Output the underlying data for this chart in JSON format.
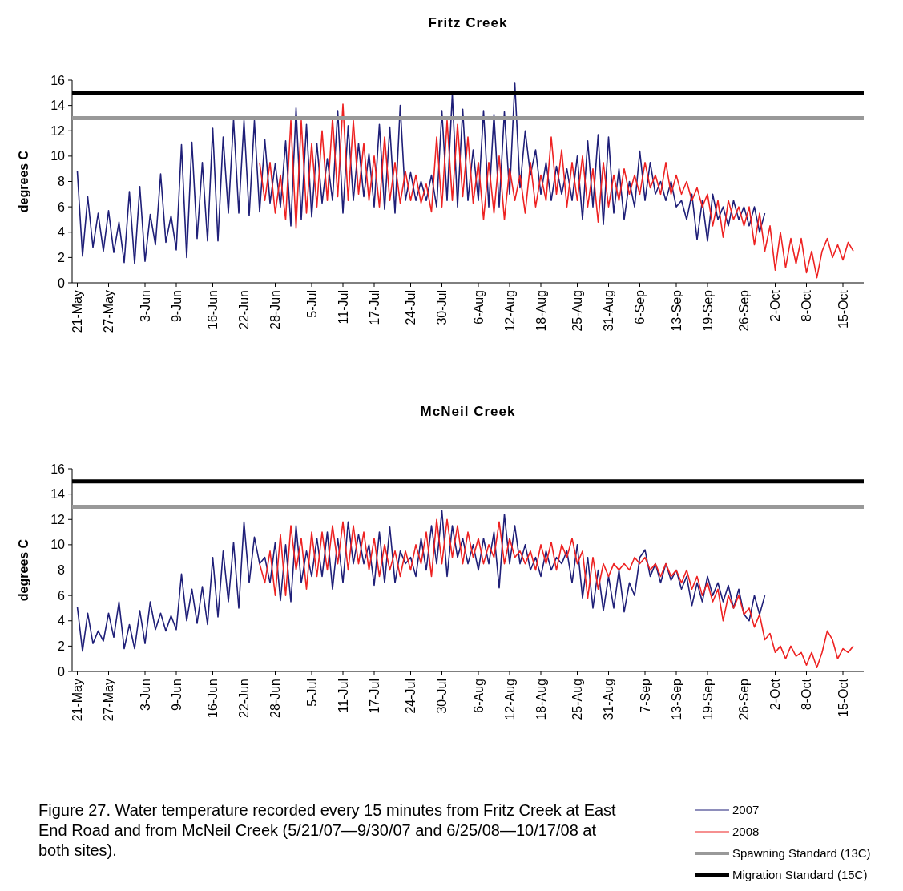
{
  "chart_data": [
    {
      "type": "line",
      "title": "Fritz Creek",
      "ylabel": "degrees C",
      "x": [
        "--05-21",
        "--05-22",
        "--05-23",
        "--05-24",
        "--05-25",
        "--05-26",
        "--05-27",
        "--05-28",
        "--05-29",
        "--05-30",
        "--05-31",
        "--06-01",
        "--06-02",
        "--06-03",
        "--06-04",
        "--06-05",
        "--06-06",
        "--06-07",
        "--06-08",
        "--06-09",
        "--06-10",
        "--06-11",
        "--06-12",
        "--06-13",
        "--06-14",
        "--06-15",
        "--06-16",
        "--06-17",
        "--06-18",
        "--06-19",
        "--06-20",
        "--06-21",
        "--06-22",
        "--06-23",
        "--06-24",
        "--06-25",
        "--06-26",
        "--06-27",
        "--06-28",
        "--06-29",
        "--06-30",
        "--07-01",
        "--07-02",
        "--07-03",
        "--07-04",
        "--07-05",
        "--07-06",
        "--07-07",
        "--07-08",
        "--07-09",
        "--07-10",
        "--07-11",
        "--07-12",
        "--07-13",
        "--07-14",
        "--07-15",
        "--07-16",
        "--07-17",
        "--07-18",
        "--07-19",
        "--07-20",
        "--07-21",
        "--07-22",
        "--07-23",
        "--07-24",
        "--07-25",
        "--07-26",
        "--07-27",
        "--07-28",
        "--07-29",
        "--07-30",
        "--07-31",
        "--08-01",
        "--08-02",
        "--08-03",
        "--08-04",
        "--08-05",
        "--08-06",
        "--08-07",
        "--08-08",
        "--08-09",
        "--08-10",
        "--08-11",
        "--08-12",
        "--08-13",
        "--08-14",
        "--08-15",
        "--08-16",
        "--08-17",
        "--08-18",
        "--08-19",
        "--08-20",
        "--08-21",
        "--08-22",
        "--08-23",
        "--08-24",
        "--08-25",
        "--08-26",
        "--08-27",
        "--08-28",
        "--08-29",
        "--08-30",
        "--08-31",
        "--09-01",
        "--09-02",
        "--09-03",
        "--09-04",
        "--09-05",
        "--09-06",
        "--09-07",
        "--09-08",
        "--09-09",
        "--09-10",
        "--09-11",
        "--09-12",
        "--09-13",
        "--09-14",
        "--09-15",
        "--09-16",
        "--09-17",
        "--09-18",
        "--09-19",
        "--09-20",
        "--09-21",
        "--09-22",
        "--09-23",
        "--09-24",
        "--09-25",
        "--09-26",
        "--09-27",
        "--09-28",
        "--09-29",
        "--09-30",
        "--10-01",
        "--10-02",
        "--10-03",
        "--10-04",
        "--10-05",
        "--10-06",
        "--10-07",
        "--10-08",
        "--10-09",
        "--10-10",
        "--10-11",
        "--10-12",
        "--10-13",
        "--10-14",
        "--10-15",
        "--10-16",
        "--10-17"
      ],
      "xlim": [
        "--05-20",
        "--10-19"
      ],
      "xticks": [
        {
          "value": "--05-21",
          "label": "21-May"
        },
        {
          "value": "--05-27",
          "label": "27-May"
        },
        {
          "value": "--06-03",
          "label": "3-Jun"
        },
        {
          "value": "--06-09",
          "label": "9-Jun"
        },
        {
          "value": "--06-16",
          "label": "16-Jun"
        },
        {
          "value": "--06-22",
          "label": "22-Jun"
        },
        {
          "value": "--06-28",
          "label": "28-Jun"
        },
        {
          "value": "--07-05",
          "label": "5-Jul"
        },
        {
          "value": "--07-11",
          "label": "11-Jul"
        },
        {
          "value": "--07-17",
          "label": "17-Jul"
        },
        {
          "value": "--07-24",
          "label": "24-Jul"
        },
        {
          "value": "--07-30",
          "label": "30-Jul"
        },
        {
          "value": "--08-06",
          "label": "6-Aug"
        },
        {
          "value": "--08-12",
          "label": "12-Aug"
        },
        {
          "value": "--08-18",
          "label": "18-Aug"
        },
        {
          "value": "--08-25",
          "label": "25-Aug"
        },
        {
          "value": "--08-31",
          "label": "31-Aug"
        },
        {
          "value": "--09-06",
          "label": "6-Sep"
        },
        {
          "value": "--09-13",
          "label": "13-Sep"
        },
        {
          "value": "--09-19",
          "label": "19-Sep"
        },
        {
          "value": "--09-26",
          "label": "26-Sep"
        },
        {
          "value": "--10-02",
          "label": "2-Oct"
        },
        {
          "value": "--10-08",
          "label": "8-Oct"
        },
        {
          "value": "--10-15",
          "label": "15-Oct"
        }
      ],
      "ylim": [
        0,
        16
      ],
      "yticks": [
        0,
        2,
        4,
        6,
        8,
        10,
        12,
        14,
        16
      ],
      "series": [
        {
          "color": "#1f1f78",
          "values": [
            8.8,
            2.1,
            6.8,
            2.8,
            5.5,
            2.5,
            5.7,
            2.4,
            4.8,
            1.6,
            7.2,
            1.5,
            7.6,
            1.7,
            5.4,
            3.0,
            8.6,
            3.2,
            5.3,
            2.6,
            10.9,
            2.0,
            11.1,
            3.5,
            9.5,
            3.3,
            12.2,
            3.3,
            11.5,
            5.5,
            12.9,
            5.5,
            12.8,
            5.3,
            12.8,
            5.6,
            11.3,
            6.3,
            9.4,
            6.0,
            11.2,
            4.5,
            13.8,
            5.0,
            12.5,
            5.2,
            11.0,
            6.3,
            9.8,
            6.5,
            13.6,
            5.5,
            12.4,
            6.5,
            11.0,
            6.8,
            10.2,
            6.0,
            12.5,
            5.8,
            12.3,
            5.5,
            14.0,
            6.5,
            8.7,
            6.5,
            8.0,
            6.5,
            8.5,
            6.0,
            13.6,
            6.5,
            14.9,
            6.0,
            13.7,
            6.5,
            10.5,
            6.5,
            13.6,
            6.0,
            13.3,
            6.0,
            13.5,
            7.0,
            15.8,
            7.5,
            12.0,
            8.5,
            10.5,
            7.0,
            9.5,
            6.5,
            9.2,
            7.0,
            9.0,
            6.5,
            10.0,
            5.0,
            11.2,
            6.0,
            11.7,
            4.6,
            11.5,
            5.5,
            9.0,
            5.0,
            8.0,
            6.0,
            10.4,
            6.5,
            9.5,
            7.0,
            8.0,
            6.5,
            8.0,
            6.0,
            6.5,
            5.0,
            7.0,
            3.4,
            6.5,
            3.3,
            7.0,
            5.0,
            6.0,
            4.5,
            6.5,
            5.0,
            6.0,
            4.5,
            6.0,
            4.0,
            5.5,
            null,
            null,
            null,
            null,
            null,
            null,
            null,
            null,
            null,
            null,
            null,
            null,
            null,
            null,
            null,
            null,
            null
          ]
        },
        {
          "color": "#ee2222",
          "values": [
            null,
            null,
            null,
            null,
            null,
            null,
            null,
            null,
            null,
            null,
            null,
            null,
            null,
            null,
            null,
            null,
            null,
            null,
            null,
            null,
            null,
            null,
            null,
            null,
            null,
            null,
            null,
            null,
            null,
            null,
            null,
            null,
            null,
            null,
            null,
            9.5,
            6.5,
            9.5,
            5.5,
            8.5,
            5.0,
            12.8,
            4.3,
            12.8,
            5.5,
            11.0,
            6.0,
            12.0,
            6.5,
            13.0,
            6.8,
            14.1,
            6.5,
            12.8,
            7.0,
            11.0,
            6.5,
            10.0,
            6.0,
            11.5,
            6.5,
            9.5,
            6.3,
            8.8,
            6.5,
            8.5,
            6.3,
            7.8,
            5.6,
            11.5,
            6.0,
            12.8,
            6.5,
            12.5,
            6.8,
            11.5,
            6.3,
            9.5,
            5.0,
            9.5,
            5.5,
            10.0,
            5.0,
            9.0,
            6.5,
            8.5,
            5.5,
            9.5,
            6.0,
            8.5,
            6.5,
            11.5,
            7.0,
            10.5,
            6.0,
            9.5,
            6.5,
            10.0,
            6.0,
            9.0,
            4.8,
            9.5,
            6.0,
            8.5,
            6.5,
            9.0,
            7.0,
            8.5,
            7.0,
            9.5,
            7.5,
            8.5,
            7.0,
            9.5,
            7.0,
            8.5,
            7.0,
            8.0,
            6.5,
            7.5,
            6.0,
            7.0,
            4.5,
            6.5,
            3.6,
            6.5,
            5.0,
            6.0,
            4.5,
            6.0,
            3.0,
            5.5,
            2.5,
            4.5,
            1.0,
            4.0,
            1.2,
            3.5,
            1.5,
            3.5,
            0.8,
            2.5,
            0.4,
            2.5,
            3.5,
            2.0,
            3.0,
            1.8,
            3.2,
            2.5
          ]
        }
      ],
      "ref_lines": [
        {
          "axis": "y",
          "value": 13,
          "color": "#999999"
        },
        {
          "axis": "y",
          "value": 15,
          "color": "#000000"
        }
      ]
    },
    {
      "type": "line",
      "title": "McNeil Creek",
      "ylabel": "degrees C",
      "x": [
        "--05-21",
        "--05-22",
        "--05-23",
        "--05-24",
        "--05-25",
        "--05-26",
        "--05-27",
        "--05-28",
        "--05-29",
        "--05-30",
        "--05-31",
        "--06-01",
        "--06-02",
        "--06-03",
        "--06-04",
        "--06-05",
        "--06-06",
        "--06-07",
        "--06-08",
        "--06-09",
        "--06-10",
        "--06-11",
        "--06-12",
        "--06-13",
        "--06-14",
        "--06-15",
        "--06-16",
        "--06-17",
        "--06-18",
        "--06-19",
        "--06-20",
        "--06-21",
        "--06-22",
        "--06-23",
        "--06-24",
        "--06-25",
        "--06-26",
        "--06-27",
        "--06-28",
        "--06-29",
        "--06-30",
        "--07-01",
        "--07-02",
        "--07-03",
        "--07-04",
        "--07-05",
        "--07-06",
        "--07-07",
        "--07-08",
        "--07-09",
        "--07-10",
        "--07-11",
        "--07-12",
        "--07-13",
        "--07-14",
        "--07-15",
        "--07-16",
        "--07-17",
        "--07-18",
        "--07-19",
        "--07-20",
        "--07-21",
        "--07-22",
        "--07-23",
        "--07-24",
        "--07-25",
        "--07-26",
        "--07-27",
        "--07-28",
        "--07-29",
        "--07-30",
        "--07-31",
        "--08-01",
        "--08-02",
        "--08-03",
        "--08-04",
        "--08-05",
        "--08-06",
        "--08-07",
        "--08-08",
        "--08-09",
        "--08-10",
        "--08-11",
        "--08-12",
        "--08-13",
        "--08-14",
        "--08-15",
        "--08-16",
        "--08-17",
        "--08-18",
        "--08-19",
        "--08-20",
        "--08-21",
        "--08-22",
        "--08-23",
        "--08-24",
        "--08-25",
        "--08-26",
        "--08-27",
        "--08-28",
        "--08-29",
        "--08-30",
        "--08-31",
        "--09-01",
        "--09-02",
        "--09-03",
        "--09-04",
        "--09-05",
        "--09-06",
        "--09-07",
        "--09-08",
        "--09-09",
        "--09-10",
        "--09-11",
        "--09-12",
        "--09-13",
        "--09-14",
        "--09-15",
        "--09-16",
        "--09-17",
        "--09-18",
        "--09-19",
        "--09-20",
        "--09-21",
        "--09-22",
        "--09-23",
        "--09-24",
        "--09-25",
        "--09-26",
        "--09-27",
        "--09-28",
        "--09-29",
        "--09-30",
        "--10-01",
        "--10-02",
        "--10-03",
        "--10-04",
        "--10-05",
        "--10-06",
        "--10-07",
        "--10-08",
        "--10-09",
        "--10-10",
        "--10-11",
        "--10-12",
        "--10-13",
        "--10-14",
        "--10-15",
        "--10-16",
        "--10-17"
      ],
      "xlim": [
        "--05-20",
        "--10-19"
      ],
      "xticks": [
        {
          "value": "--05-21",
          "label": "21-May"
        },
        {
          "value": "--05-27",
          "label": "27-May"
        },
        {
          "value": "--06-03",
          "label": "3-Jun"
        },
        {
          "value": "--06-09",
          "label": "9-Jun"
        },
        {
          "value": "--06-16",
          "label": "16-Jun"
        },
        {
          "value": "--06-22",
          "label": "22-Jun"
        },
        {
          "value": "--06-28",
          "label": "28-Jun"
        },
        {
          "value": "--07-05",
          "label": "5-Jul"
        },
        {
          "value": "--07-11",
          "label": "11-Jul"
        },
        {
          "value": "--07-17",
          "label": "17-Jul"
        },
        {
          "value": "--07-24",
          "label": "24-Jul"
        },
        {
          "value": "--07-30",
          "label": "30-Jul"
        },
        {
          "value": "--08-06",
          "label": "6-Aug"
        },
        {
          "value": "--08-12",
          "label": "12-Aug"
        },
        {
          "value": "--08-18",
          "label": "18-Aug"
        },
        {
          "value": "--08-25",
          "label": "25-Aug"
        },
        {
          "value": "--08-31",
          "label": "31-Aug"
        },
        {
          "value": "--09-07",
          "label": "7-Sep"
        },
        {
          "value": "--09-13",
          "label": "13-Sep"
        },
        {
          "value": "--09-19",
          "label": "19-Sep"
        },
        {
          "value": "--09-26",
          "label": "26-Sep"
        },
        {
          "value": "--10-02",
          "label": "2-Oct"
        },
        {
          "value": "--10-08",
          "label": "8-Oct"
        },
        {
          "value": "--10-15",
          "label": "15-Oct"
        }
      ],
      "ylim": [
        0,
        16
      ],
      "yticks": [
        0,
        2,
        4,
        6,
        8,
        10,
        12,
        14,
        16
      ],
      "series": [
        {
          "name": "2007",
          "color": "#1f1f78",
          "values": [
            5.1,
            1.6,
            4.6,
            2.2,
            3.2,
            2.4,
            4.6,
            2.7,
            5.5,
            1.8,
            3.7,
            1.8,
            4.8,
            2.2,
            5.5,
            3.3,
            4.6,
            3.2,
            4.4,
            3.3,
            7.7,
            4.0,
            6.5,
            3.8,
            6.7,
            3.7,
            9.0,
            4.3,
            9.5,
            5.5,
            10.2,
            5.0,
            11.8,
            7.0,
            10.6,
            8.5,
            9.0,
            7.0,
            10.2,
            5.6,
            10.0,
            5.5,
            11.5,
            7.0,
            9.5,
            7.5,
            10.5,
            7.5,
            11.0,
            6.5,
            10.5,
            7.0,
            11.8,
            8.5,
            10.8,
            8.5,
            10.0,
            6.8,
            11.0,
            7.0,
            11.4,
            7.0,
            9.5,
            8.5,
            9.0,
            7.5,
            10.5,
            8.0,
            11.5,
            8.5,
            12.7,
            7.5,
            11.5,
            9.0,
            10.5,
            8.5,
            10.0,
            8.0,
            10.5,
            8.5,
            11.0,
            6.6,
            12.4,
            8.5,
            11.5,
            8.5,
            10.0,
            8.0,
            9.0,
            7.5,
            9.5,
            8.0,
            9.0,
            8.5,
            9.5,
            7.0,
            10.0,
            5.8,
            9.0,
            5.0,
            8.0,
            4.8,
            7.5,
            5.0,
            8.0,
            4.7,
            7.0,
            6.0,
            9.0,
            9.6,
            7.5,
            8.5,
            7.0,
            8.5,
            7.2,
            8.0,
            6.5,
            7.5,
            5.2,
            7.0,
            5.5,
            7.5,
            6.0,
            7.0,
            5.5,
            6.8,
            5.0,
            6.5,
            4.5,
            4.0,
            6.0,
            4.5,
            6.0,
            null,
            null,
            null,
            null,
            null,
            null,
            null,
            null,
            null,
            null,
            null,
            null,
            null,
            null,
            null,
            null,
            null
          ]
        },
        {
          "name": "2008",
          "color": "#ee2222",
          "values": [
            null,
            null,
            null,
            null,
            null,
            null,
            null,
            null,
            null,
            null,
            null,
            null,
            null,
            null,
            null,
            null,
            null,
            null,
            null,
            null,
            null,
            null,
            null,
            null,
            null,
            null,
            null,
            null,
            null,
            null,
            null,
            null,
            null,
            null,
            null,
            8.5,
            7.0,
            9.5,
            6.0,
            10.8,
            6.0,
            11.5,
            8.0,
            10.5,
            6.5,
            11.0,
            7.5,
            11.0,
            8.0,
            11.5,
            8.5,
            11.8,
            8.0,
            11.5,
            8.5,
            11.0,
            8.0,
            10.5,
            7.5,
            10.0,
            8.0,
            9.5,
            7.5,
            9.5,
            8.0,
            10.0,
            8.5,
            11.0,
            7.5,
            12.0,
            8.5,
            12.0,
            9.0,
            11.5,
            8.5,
            11.0,
            9.0,
            10.5,
            8.5,
            10.0,
            9.0,
            11.8,
            8.5,
            10.5,
            9.0,
            9.5,
            8.5,
            9.5,
            8.0,
            10.0,
            8.5,
            10.2,
            8.0,
            10.0,
            9.0,
            10.5,
            8.5,
            9.5,
            5.8,
            9.0,
            6.5,
            8.5,
            7.5,
            8.5,
            8.0,
            8.5,
            8.0,
            9.0,
            8.5,
            9.0,
            8.0,
            8.5,
            7.5,
            8.5,
            7.5,
            8.0,
            7.0,
            8.0,
            6.5,
            7.5,
            6.0,
            7.0,
            5.5,
            6.5,
            4.0,
            6.0,
            5.0,
            6.0,
            4.5,
            5.0,
            3.5,
            4.5,
            2.5,
            3.0,
            1.5,
            2.0,
            1.0,
            2.0,
            1.2,
            1.5,
            0.5,
            1.5,
            0.3,
            1.5,
            3.2,
            2.5,
            1.0,
            1.8,
            1.5,
            2.0
          ]
        }
      ],
      "ref_lines": [
        {
          "axis": "y",
          "value": 13,
          "label": "Spawning Standard (13C)",
          "color": "#999999"
        },
        {
          "axis": "y",
          "value": 15,
          "label": "Migration Standard (15C)",
          "color": "#000000"
        }
      ],
      "legend": "bottom right",
      "annotations": [
        "Figure 27. Water temperature recorded every 15 minutes from Fritz Creek at East End Road and from McNeil Creek (5/21/07—9/30/07 and 6/25/08—10/17/08 at both sites)."
      ]
    }
  ]
}
